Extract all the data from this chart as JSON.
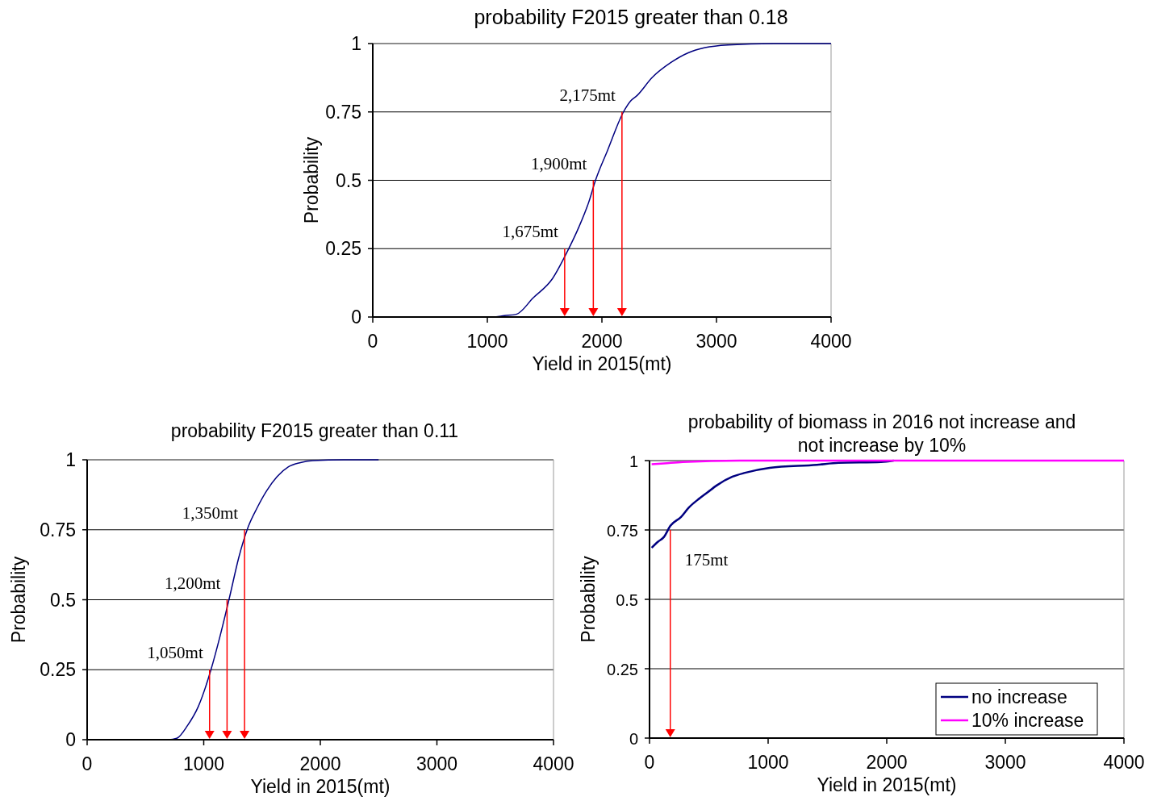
{
  "chart_data": [
    {
      "type": "line",
      "title": "probability  F2015 greater  than  0.18",
      "xlabel": "Yield in 2015(mt)",
      "ylabel": "Probability",
      "xlim": [
        0,
        4000
      ],
      "xticks": [
        0,
        1000,
        2000,
        3000,
        4000
      ],
      "ylim": [
        0,
        1
      ],
      "yticks": [
        0,
        0.25,
        0.5,
        0.75,
        1
      ],
      "grid": "y",
      "series": [
        {
          "color": "#000080",
          "x": [
            0,
            1050,
            1150,
            1253,
            1400,
            1568,
            1695,
            1800,
            1885,
            1944,
            2050,
            2188,
            2250,
            2307,
            2439,
            2600,
            2753,
            2900,
            3099,
            3500,
            4000
          ],
          "values": [
            0,
            0,
            0.005,
            0.01,
            0.07,
            0.14,
            0.237,
            0.33,
            0.42,
            0.5,
            0.61,
            0.75,
            0.79,
            0.81,
            0.876,
            0.93,
            0.966,
            0.985,
            0.995,
            1,
            1
          ]
        }
      ],
      "annotations": [
        {
          "text": "1,675mt",
          "x": 1675,
          "y": 0.25
        },
        {
          "text": "1,900mt",
          "x": 1925,
          "y": 0.5
        },
        {
          "text": "2,175mt",
          "x": 2175,
          "y": 0.75
        }
      ]
    },
    {
      "type": "line",
      "title": "probability F2015 greater than 0.11",
      "xlabel": "Yield in 2015(mt)",
      "ylabel": "Probability",
      "xlim": [
        0,
        4000
      ],
      "xticks": [
        0,
        1000,
        2000,
        3000,
        4000
      ],
      "ylim": [
        0,
        1
      ],
      "yticks": [
        0,
        0.25,
        0.5,
        0.75,
        1
      ],
      "grid": "y",
      "series": [
        {
          "color": "#000080",
          "x": [
            0,
            700,
            769,
            860,
            955,
            1062,
            1140,
            1222,
            1300,
            1381,
            1460,
            1541,
            1630,
            1727,
            1830,
            1937,
            2200,
            2500
          ],
          "values": [
            0,
            0,
            0.005,
            0.05,
            0.12,
            0.25,
            0.37,
            0.51,
            0.65,
            0.76,
            0.83,
            0.89,
            0.94,
            0.975,
            0.99,
            0.997,
            1,
            1
          ]
        }
      ],
      "annotations": [
        {
          "text": "1,050mt",
          "x": 1050,
          "y": 0.25
        },
        {
          "text": "1,200mt",
          "x": 1200,
          "y": 0.5
        },
        {
          "text": "1,350mt",
          "x": 1350,
          "y": 0.75
        }
      ]
    },
    {
      "type": "line",
      "title": "probability of biomass in 2016 not increase and\nnot increase by 10%",
      "xlabel": "Yield in 2015(mt)",
      "ylabel": "Probability",
      "xlim": [
        0,
        4000
      ],
      "xticks": [
        0,
        1000,
        2000,
        3000,
        4000
      ],
      "ylim": [
        0,
        1
      ],
      "yticks": [
        0,
        0.25,
        0.5,
        0.75,
        1
      ],
      "grid": "y",
      "legend": "bottom right",
      "series": [
        {
          "name": "no increase",
          "color": "#000080",
          "x": [
            18,
            72,
            122,
            176,
            266,
            332,
            422,
            490,
            568,
            699,
            805,
            1013,
            1411,
            1594,
            1952,
            2059
          ],
          "values": [
            0.686,
            0.708,
            0.725,
            0.765,
            0.797,
            0.831,
            0.864,
            0.886,
            0.911,
            0.942,
            0.956,
            0.974,
            0.985,
            0.992,
            0.995,
            1
          ]
        },
        {
          "name": "10% increase",
          "color": "#ff00ff",
          "x": [
            18,
            122,
            280,
            760,
            2000,
            4000
          ],
          "values": [
            0.987,
            0.99,
            0.995,
            1,
            1,
            1
          ]
        }
      ],
      "annotations": [
        {
          "text": "175mt",
          "x": 175,
          "y": 0.75
        }
      ]
    }
  ]
}
